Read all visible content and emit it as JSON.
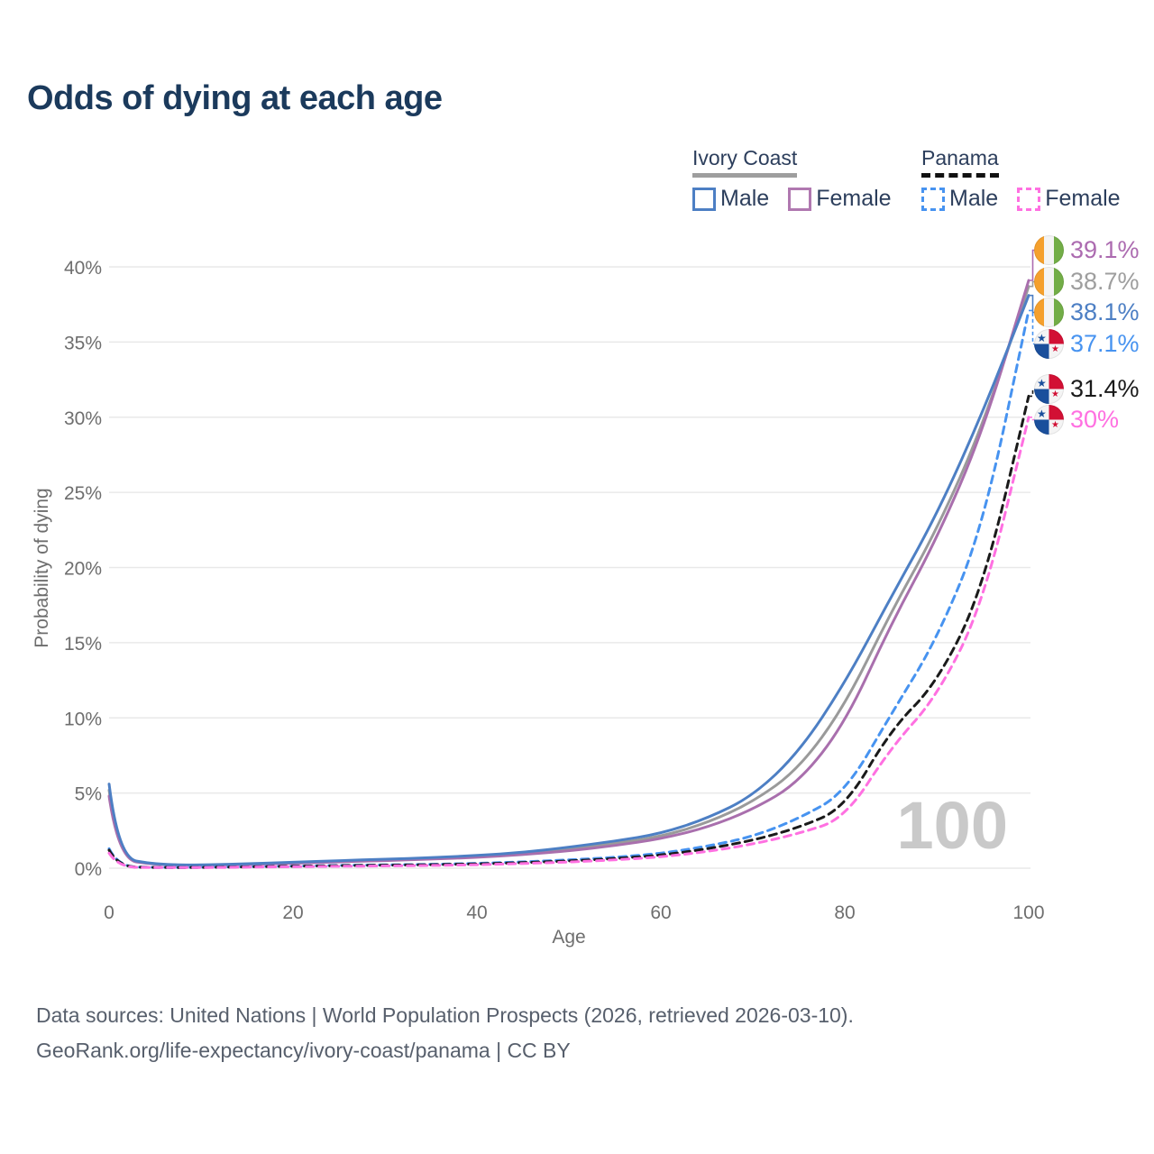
{
  "title": "Odds of dying at each age",
  "legend": {
    "groups": [
      {
        "label": "Ivory Coast",
        "line_style": "solid",
        "items": [
          {
            "label": "Male",
            "color": "#4d7fc4"
          },
          {
            "label": "Female",
            "color": "#b078b0"
          }
        ]
      },
      {
        "label": "Panama",
        "line_style": "dashed",
        "items": [
          {
            "label": "Male",
            "color": "#4793f0"
          },
          {
            "label": "Female",
            "color": "#ff70e1"
          }
        ]
      }
    ]
  },
  "chart_data": {
    "type": "line",
    "title": "Odds of dying at each age",
    "xlabel": "Age",
    "ylabel": "Probability of dying",
    "xlim": [
      0,
      100
    ],
    "ylim": [
      0,
      40
    ],
    "grid": "horizontal",
    "age_counter": "100",
    "xticks": [
      0,
      20,
      40,
      60,
      80,
      100
    ],
    "yticks": [
      {
        "value": 0,
        "label": "0%"
      },
      {
        "value": 5,
        "label": "5%"
      },
      {
        "value": 10,
        "label": "10%"
      },
      {
        "value": 15,
        "label": "15%"
      },
      {
        "value": 20,
        "label": "20%"
      },
      {
        "value": 25,
        "label": "25%"
      },
      {
        "value": 30,
        "label": "30%"
      },
      {
        "value": 35,
        "label": "35%"
      },
      {
        "value": 40,
        "label": "40%"
      }
    ],
    "x": [
      0,
      1,
      5,
      10,
      15,
      20,
      25,
      30,
      35,
      40,
      45,
      50,
      55,
      60,
      65,
      70,
      75,
      80,
      85,
      90,
      95,
      100
    ],
    "series": [
      {
        "name": "Ivory Coast Both sexes",
        "country": "Ivory Coast",
        "sex": "both",
        "style": "solid",
        "color": "#9a9a9a",
        "values": [
          5.2,
          0.65,
          0.24,
          0.19,
          0.28,
          0.37,
          0.46,
          0.55,
          0.65,
          0.78,
          0.97,
          1.28,
          1.65,
          2.1,
          3.0,
          4.4,
          6.6,
          10.8,
          17.0,
          22.5,
          29.4,
          38.7
        ]
      },
      {
        "name": "Ivory Coast Female",
        "country": "Ivory Coast",
        "sex": "female",
        "style": "solid",
        "color": "#a96fad",
        "values": [
          4.8,
          0.6,
          0.22,
          0.18,
          0.25,
          0.33,
          0.42,
          0.5,
          0.6,
          0.72,
          0.9,
          1.15,
          1.5,
          1.95,
          2.7,
          3.9,
          5.7,
          9.6,
          16.2,
          21.9,
          29.0,
          39.1
        ]
      },
      {
        "name": "Ivory Coast Male",
        "country": "Ivory Coast",
        "sex": "male",
        "style": "solid",
        "color": "#4d7fc4",
        "values": [
          5.6,
          0.7,
          0.25,
          0.2,
          0.3,
          0.4,
          0.5,
          0.6,
          0.7,
          0.85,
          1.05,
          1.4,
          1.8,
          2.3,
          3.3,
          4.8,
          7.7,
          12.3,
          18.0,
          23.5,
          30.3,
          38.1
        ]
      },
      {
        "name": "Panama Male",
        "country": "Panama",
        "sex": "male",
        "style": "dashed",
        "color": "#4793f0",
        "values": [
          1.3,
          0.1,
          0.05,
          0.05,
          0.1,
          0.14,
          0.19,
          0.22,
          0.26,
          0.32,
          0.42,
          0.55,
          0.72,
          0.98,
          1.45,
          2.1,
          3.3,
          5.0,
          10.2,
          15.2,
          22.6,
          37.1
        ]
      },
      {
        "name": "Panama Both sexes",
        "country": "Panama",
        "sex": "both",
        "style": "dashed",
        "color": "#1a1a1a",
        "values": [
          1.2,
          0.09,
          0.05,
          0.05,
          0.09,
          0.13,
          0.17,
          0.2,
          0.23,
          0.28,
          0.37,
          0.48,
          0.64,
          0.86,
          1.28,
          1.85,
          2.7,
          4.0,
          9.2,
          12.3,
          18.5,
          31.4
        ]
      },
      {
        "name": "Panama Female",
        "country": "Panama",
        "sex": "female",
        "style": "dashed",
        "color": "#ff70e1",
        "values": [
          1.0,
          0.08,
          0.04,
          0.04,
          0.07,
          0.1,
          0.13,
          0.15,
          0.18,
          0.23,
          0.31,
          0.41,
          0.55,
          0.75,
          1.1,
          1.6,
          2.3,
          3.3,
          8.0,
          11.4,
          17.5,
          30.0
        ]
      }
    ],
    "end_labels": [
      {
        "text": "39.1%",
        "value": 39.1,
        "series": "Ivory Coast Female",
        "flag": "ivory-coast",
        "color": "#ac6bb0"
      },
      {
        "text": "38.7%",
        "value": 38.7,
        "series": "Ivory Coast Both sexes",
        "flag": "ivory-coast",
        "color": "#9e9e9e"
      },
      {
        "text": "38.1%",
        "value": 38.1,
        "series": "Ivory Coast Male",
        "flag": "ivory-coast",
        "color": "#4d7fc4"
      },
      {
        "text": "37.1%",
        "value": 37.1,
        "series": "Panama Male",
        "flag": "panama",
        "color": "#4793f0"
      },
      {
        "text": "31.4%",
        "value": 31.4,
        "series": "Panama Both sexes",
        "flag": "panama",
        "color": "#1a1a1a"
      },
      {
        "text": "30%",
        "value": 30.0,
        "series": "Panama Female",
        "flag": "panama",
        "color": "#ff70e1"
      }
    ]
  },
  "footer": {
    "line1": "Data sources: United Nations | World Population Prospects (2026, retrieved 2026-03-10).",
    "line2": "GeoRank.org/life-expectancy/ivory-coast/panama | CC BY"
  },
  "star_icon": "★"
}
